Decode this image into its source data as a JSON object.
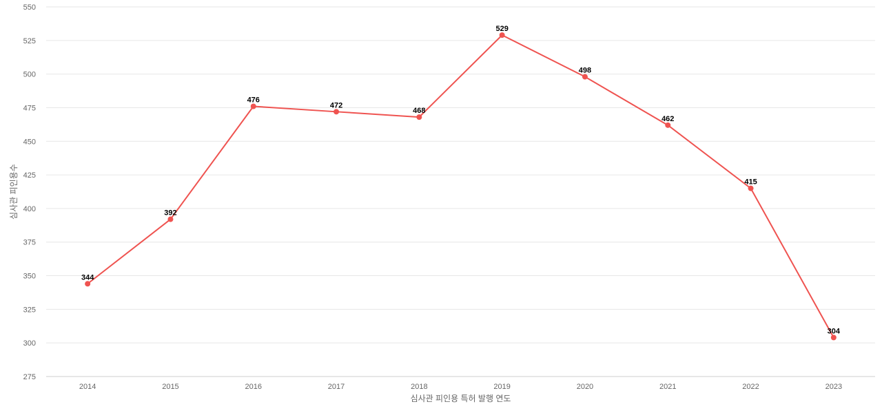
{
  "chart_data": {
    "type": "line",
    "title": "",
    "xlabel": "심사관 피인용 특허 발행 연도",
    "ylabel": "심사관 피인용수",
    "categories": [
      "2014",
      "2015",
      "2016",
      "2017",
      "2018",
      "2019",
      "2020",
      "2021",
      "2022",
      "2023"
    ],
    "series": [
      {
        "values": [
          344,
          392,
          476,
          472,
          468,
          529,
          498,
          462,
          415,
          304
        ],
        "color": "#ef5350"
      }
    ],
    "ylim": [
      275,
      550
    ],
    "yticks": [
      275,
      300,
      325,
      350,
      375,
      400,
      425,
      450,
      475,
      500,
      525,
      550
    ],
    "grid": true,
    "legend": "none",
    "data_labels": true
  }
}
